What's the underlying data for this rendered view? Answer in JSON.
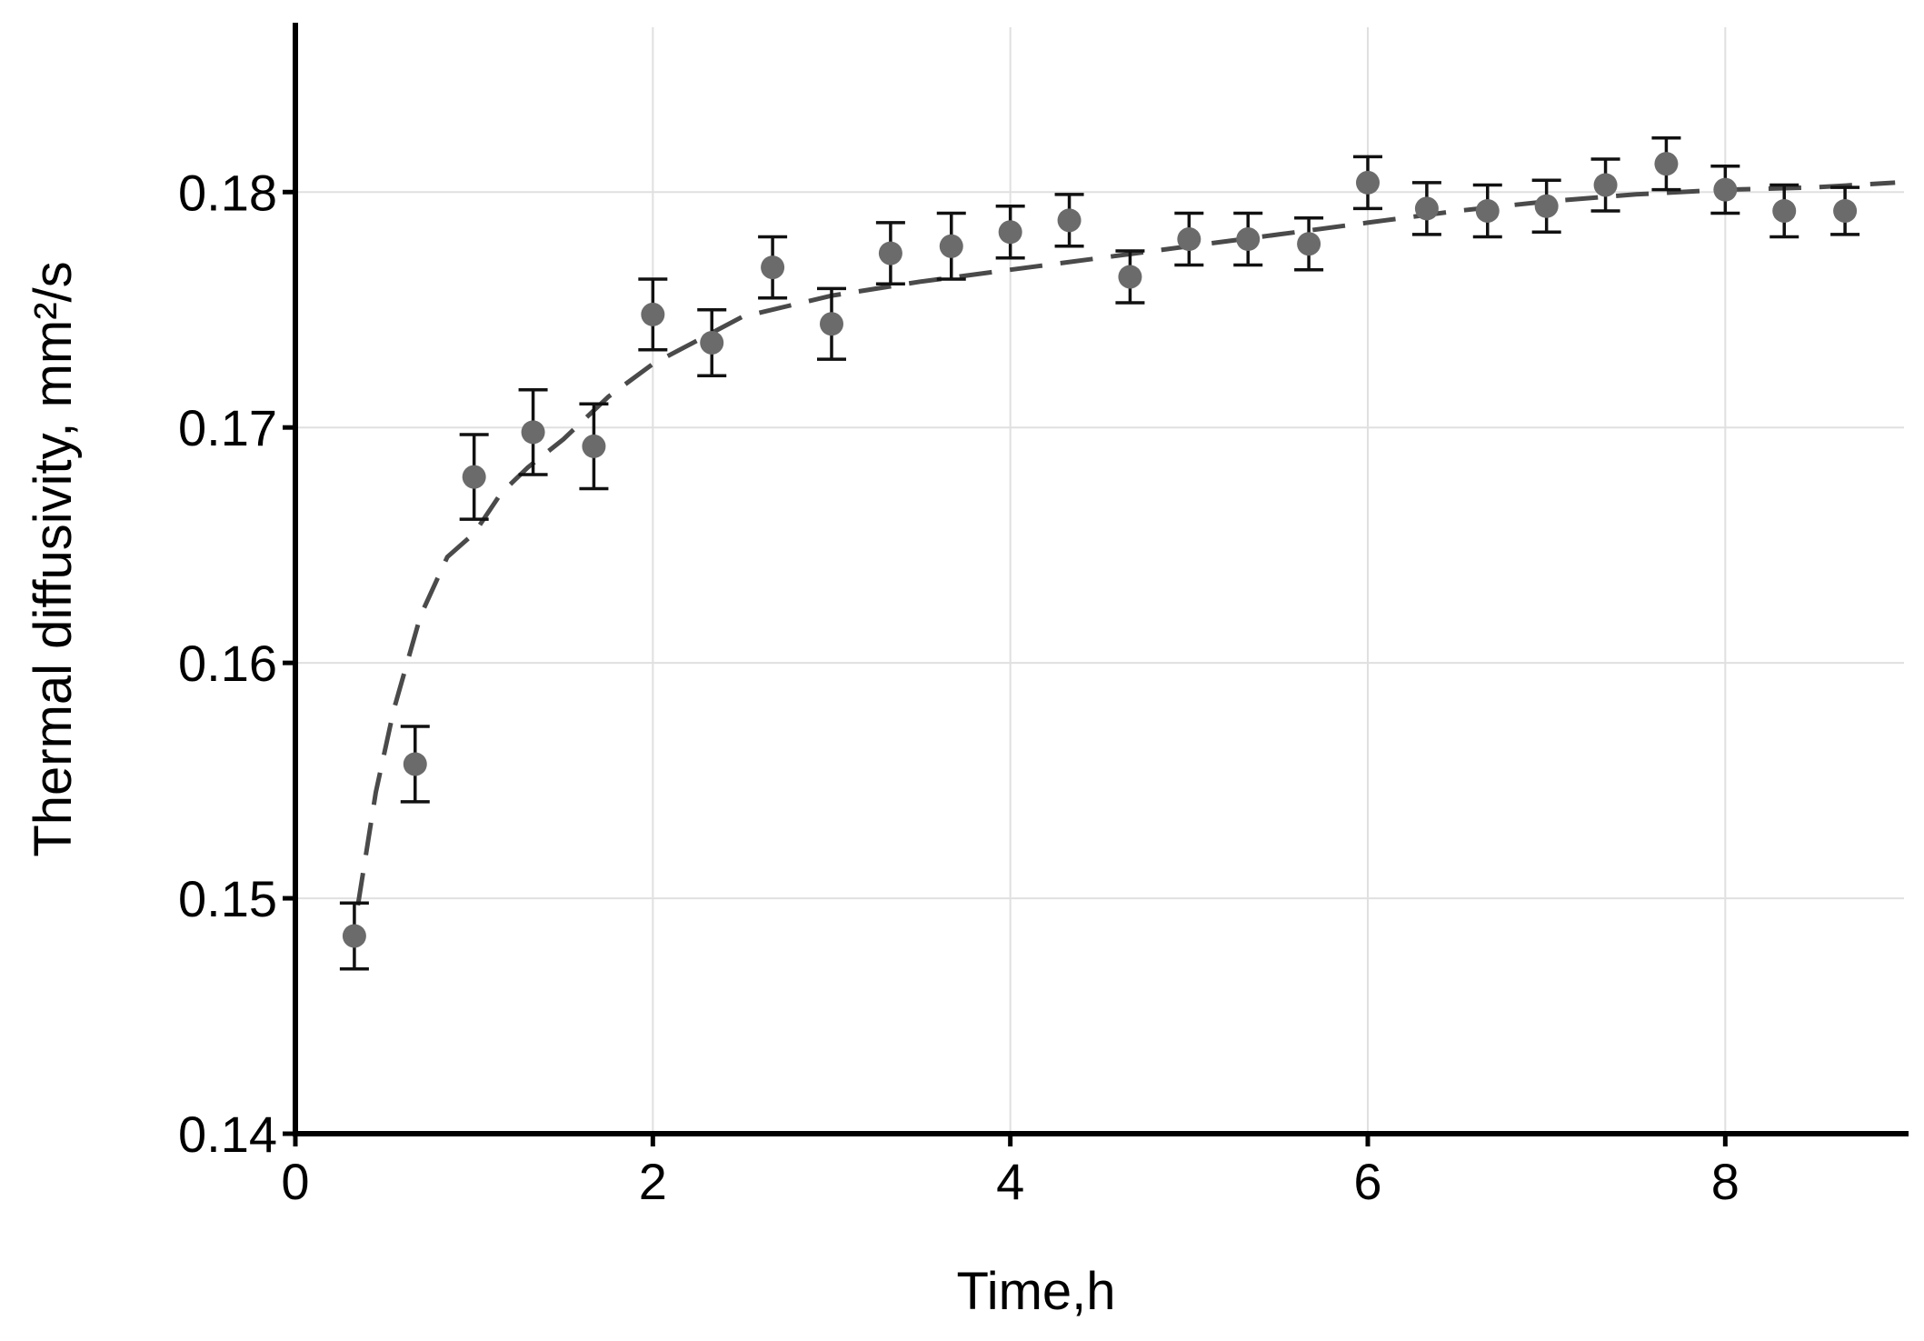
{
  "chart_data": {
    "type": "scatter",
    "xlabel": "Time,h",
    "ylabel": "Thermal diffusivity, mm²/s",
    "xlim": [
      0,
      9
    ],
    "ylim": [
      0.14,
      0.187
    ],
    "x_ticks": [
      0,
      2,
      4,
      6,
      8
    ],
    "x_tick_labels": [
      "0",
      "2",
      "4",
      "6",
      "8"
    ],
    "y_ticks": [
      0.14,
      0.15,
      0.16,
      0.17,
      0.18
    ],
    "y_tick_labels": [
      "0.14",
      "0.15",
      "0.16",
      "0.17",
      "0.18"
    ],
    "grid": true,
    "colors": {
      "points": "#6b6b6b",
      "fit": "#4a4a4a",
      "error_bars": "#111111",
      "axes": "#000000"
    },
    "series": [
      {
        "kind": "scatter_with_error_bars",
        "x": [
          0.33,
          0.67,
          1.0,
          1.33,
          1.67,
          2.0,
          2.33,
          2.67,
          3.0,
          3.33,
          3.67,
          4.0,
          4.33,
          4.67,
          5.0,
          5.33,
          5.67,
          6.0,
          6.33,
          6.67,
          7.0,
          7.33,
          7.67,
          8.0,
          8.33,
          8.67
        ],
        "y": [
          0.1484,
          0.1557,
          0.1679,
          0.1698,
          0.1692,
          0.1748,
          0.1736,
          0.1768,
          0.1744,
          0.1774,
          0.1777,
          0.1783,
          0.1788,
          0.1764,
          0.178,
          0.178,
          0.1778,
          0.1804,
          0.1793,
          0.1792,
          0.1794,
          0.1803,
          0.1812,
          0.1801,
          0.1792,
          0.1792
        ],
        "yerr": [
          0.0014,
          0.0016,
          0.0018,
          0.0018,
          0.0018,
          0.0015,
          0.0014,
          0.0013,
          0.0015,
          0.0013,
          0.0014,
          0.0011,
          0.0011,
          0.0011,
          0.0011,
          0.0011,
          0.0011,
          0.0011,
          0.0011,
          0.0011,
          0.0011,
          0.0011,
          0.0011,
          0.001,
          0.0011,
          0.001
        ]
      },
      {
        "kind": "fit_line_dashed",
        "x": [
          0.35,
          0.45,
          0.55,
          0.7,
          0.85,
          1.0,
          1.15,
          1.3,
          1.5,
          1.75,
          2.0,
          2.5,
          3.0,
          3.5,
          4.0,
          4.5,
          5.0,
          5.5,
          6.0,
          6.5,
          7.0,
          7.5,
          8.0,
          8.5,
          8.95
        ],
        "y": [
          0.1497,
          0.1545,
          0.158,
          0.162,
          0.1645,
          0.1655,
          0.1672,
          0.1683,
          0.1695,
          0.1713,
          0.1727,
          0.1747,
          0.1756,
          0.1762,
          0.1767,
          0.1772,
          0.1777,
          0.1782,
          0.1787,
          0.1792,
          0.1796,
          0.1799,
          0.1801,
          0.1802,
          0.1804
        ]
      }
    ]
  }
}
